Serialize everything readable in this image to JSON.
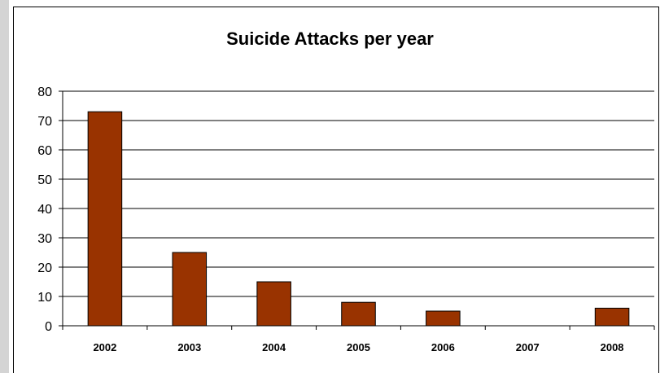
{
  "chart_data": {
    "type": "bar",
    "title": "Suicide Attacks per year",
    "categories": [
      "2002",
      "2003",
      "2004",
      "2005",
      "2006",
      "2007",
      "2008"
    ],
    "values": [
      73,
      25,
      15,
      8,
      5,
      0,
      6
    ],
    "xlabel": "",
    "ylabel": "",
    "ylim": [
      0,
      80
    ],
    "yticks": [
      "0",
      "10",
      "20",
      "30",
      "40",
      "50",
      "60",
      "70",
      "80"
    ],
    "grid": true,
    "legend": "none",
    "bar_color": "#993300"
  }
}
